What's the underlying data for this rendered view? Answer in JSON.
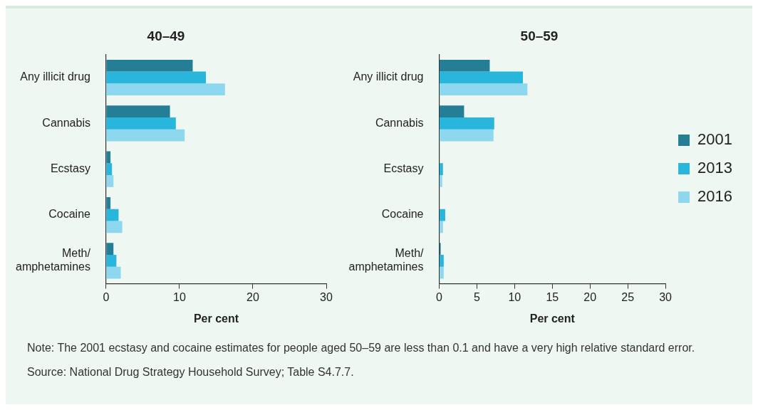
{
  "chart_data": [
    {
      "type": "bar",
      "orientation": "horizontal",
      "title": "40–49",
      "xlabel": "Per cent",
      "categories": [
        "Any illicit drug",
        "Cannabis",
        "Ecstasy",
        "Cocaine",
        "Meth/amphetamines"
      ],
      "series": [
        {
          "color": "#237e96",
          "values": [
            11.8,
            8.7,
            0.6,
            0.6,
            1.0
          ]
        },
        {
          "color": "#29b6dd",
          "values": [
            13.6,
            9.5,
            0.8,
            1.7,
            1.4
          ]
        },
        {
          "color": "#8dd8ef",
          "values": [
            16.2,
            10.7,
            1.0,
            2.2,
            2.0
          ]
        }
      ],
      "xlim": [
        0,
        30
      ],
      "xticks": [
        0,
        10,
        20,
        30
      ],
      "grid": false,
      "legend": false,
      "annotations": [
        "Note: The 2001 ecstasy and cocaine estimates for people aged 50–59 are less than 0.1 and have a very high relative standard error.",
        "Source: National Drug Strategy Household Survey; Table S4.7.7."
      ]
    },
    {
      "type": "bar",
      "orientation": "horizontal",
      "title": "50–59",
      "xlabel": "Per cent",
      "categories": [
        "Any illicit drug",
        "Cannabis",
        "Ecstasy",
        "Cocaine",
        "Meth/amphetamines"
      ],
      "series": [
        {
          "name": "2001",
          "color": "#237e96",
          "values": [
            6.7,
            3.3,
            null,
            null,
            0.2
          ]
        },
        {
          "name": "2013",
          "color": "#29b6dd",
          "values": [
            11.1,
            7.3,
            0.5,
            0.8,
            0.6
          ]
        },
        {
          "name": "2016",
          "color": "#8dd8ef",
          "values": [
            11.7,
            7.2,
            0.4,
            0.5,
            0.6
          ]
        }
      ],
      "xlim": [
        0,
        30
      ],
      "xticks": [
        0,
        5,
        10,
        15,
        20,
        25,
        30
      ],
      "grid": false,
      "legend": "right"
    }
  ]
}
